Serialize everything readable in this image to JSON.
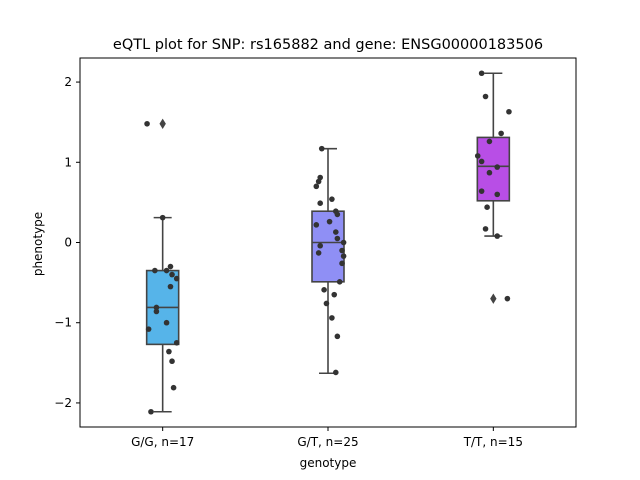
{
  "chart_data": {
    "type": "box",
    "title": "eQTL plot for SNP: rs165882 and gene: ENSG00000183506",
    "xlabel": "genotype",
    "ylabel": "phenotype",
    "ylim": [
      -2.3,
      2.3
    ],
    "yticks": [
      -2,
      -1,
      0,
      1,
      2
    ],
    "categories": [
      "G/G, n=17",
      "G/T, n=25",
      "T/T, n=15"
    ],
    "colors": [
      "#56b4e9",
      "#8f8ff5",
      "#b84ee6"
    ],
    "boxes": [
      {
        "q1": -1.27,
        "median": -0.81,
        "q3": -0.35,
        "whisker_low": -2.11,
        "whisker_high": 0.31,
        "outliers": [
          1.48
        ]
      },
      {
        "q1": -0.49,
        "median": 0.0,
        "q3": 0.39,
        "whisker_low": -1.63,
        "whisker_high": 1.17,
        "outliers": []
      },
      {
        "q1": 0.52,
        "median": 0.95,
        "q3": 1.31,
        "whisker_low": 0.08,
        "whisker_high": 2.11,
        "outliers": [
          -0.7
        ]
      }
    ],
    "points": [
      [
        [
          -0.2,
          1.48
        ],
        [
          0.0,
          0.31
        ],
        [
          -0.08,
          -0.81
        ],
        [
          0.1,
          -0.3
        ],
        [
          0.18,
          -0.45
        ],
        [
          0.05,
          -0.35
        ],
        [
          0.12,
          -0.4
        ],
        [
          0.1,
          -0.55
        ],
        [
          -0.08,
          -0.86
        ],
        [
          0.05,
          -1.0
        ],
        [
          -0.18,
          -1.08
        ],
        [
          0.18,
          -1.25
        ],
        [
          0.08,
          -1.36
        ],
        [
          0.12,
          -1.48
        ],
        [
          0.14,
          -1.81
        ],
        [
          -0.15,
          -2.11
        ],
        [
          -0.1,
          -0.35
        ]
      ],
      [
        [
          -0.08,
          1.17
        ],
        [
          -0.1,
          0.81
        ],
        [
          -0.12,
          0.76
        ],
        [
          -0.15,
          0.7
        ],
        [
          0.05,
          0.54
        ],
        [
          -0.1,
          0.49
        ],
        [
          0.1,
          0.39
        ],
        [
          0.12,
          0.35
        ],
        [
          0.02,
          0.26
        ],
        [
          -0.15,
          0.22
        ],
        [
          0.1,
          0.13
        ],
        [
          0.12,
          0.05
        ],
        [
          0.2,
          0.0
        ],
        [
          -0.1,
          -0.04
        ],
        [
          0.18,
          -0.1
        ],
        [
          -0.12,
          -0.13
        ],
        [
          0.2,
          -0.17
        ],
        [
          0.18,
          -0.26
        ],
        [
          0.15,
          -0.49
        ],
        [
          -0.05,
          -0.59
        ],
        [
          0.08,
          -0.65
        ],
        [
          -0.02,
          -0.76
        ],
        [
          0.05,
          -0.94
        ],
        [
          0.12,
          -1.17
        ],
        [
          0.1,
          -1.62
        ]
      ],
      [
        [
          -0.15,
          2.11
        ],
        [
          -0.1,
          1.82
        ],
        [
          0.2,
          1.63
        ],
        [
          0.1,
          1.36
        ],
        [
          -0.05,
          1.26
        ],
        [
          -0.2,
          1.08
        ],
        [
          -0.15,
          1.01
        ],
        [
          0.05,
          0.94
        ],
        [
          -0.05,
          0.87
        ],
        [
          -0.15,
          0.64
        ],
        [
          0.05,
          0.6
        ],
        [
          -0.08,
          0.44
        ],
        [
          -0.1,
          0.17
        ],
        [
          0.05,
          0.08
        ],
        [
          0.18,
          -0.7
        ]
      ]
    ]
  }
}
